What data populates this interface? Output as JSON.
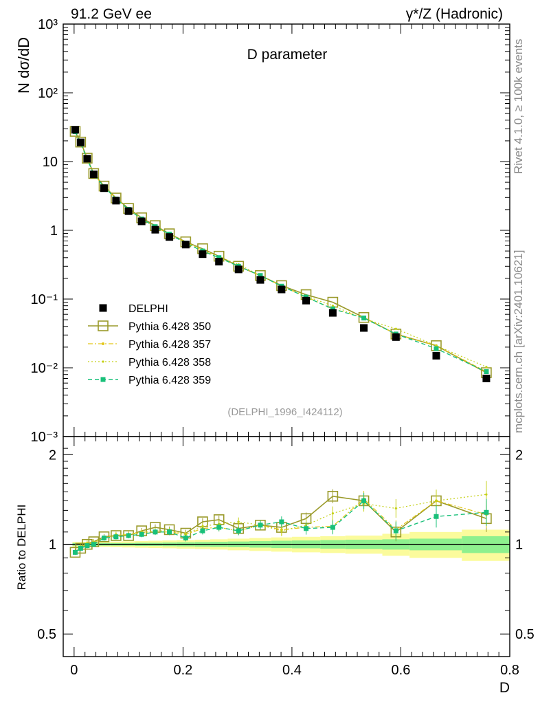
{
  "header": {
    "left": "91.2 GeV ee",
    "right": "γ*/Z (Hadronic)"
  },
  "side_labels": {
    "top": "Rivet 4.1.0, ≥ 100k events",
    "bottom": "mcplots.cern.ch [arXiv:2401.10621]"
  },
  "colors": {
    "data": "#000000",
    "p350": "#9a9a2a",
    "p357": "#e3c619",
    "p358": "#c5d118",
    "p359": "#19c07a",
    "band_inner": "#8ef08e",
    "band_outer": "#fbfb9c"
  },
  "chart_data": [
    {
      "type": "line",
      "title": "D parameter",
      "ylabel": "N  dσ/dD",
      "yscale": "log",
      "ylim": [
        0.001,
        1000
      ],
      "xlim": [
        -0.02,
        0.8
      ],
      "watermark": "(DELPHI_1996_I424112)",
      "y_tick_labels": [
        "10³",
        "10²",
        "10",
        "1",
        "10⁻¹",
        "10⁻²",
        "10⁻³"
      ],
      "y_tick_values": [
        1000,
        100,
        10,
        1,
        0.1,
        0.01,
        0.001
      ],
      "legend": {
        "placement": "lower-left",
        "entries": [
          "DELPHI",
          "Pythia 6.428 350",
          "Pythia 6.428 357",
          "Pythia 6.428 358",
          "Pythia 6.428 359"
        ]
      },
      "x": [
        0.002,
        0.012,
        0.024,
        0.036,
        0.055,
        0.077,
        0.1,
        0.124,
        0.149,
        0.175,
        0.205,
        0.236,
        0.266,
        0.302,
        0.342,
        0.381,
        0.426,
        0.475,
        0.532,
        0.591,
        0.665,
        0.757
      ],
      "data": [
        29,
        19,
        11,
        6.5,
        4.1,
        2.7,
        1.9,
        1.35,
        1.02,
        0.8,
        0.62,
        0.45,
        0.35,
        0.27,
        0.19,
        0.138,
        0.095,
        0.063,
        0.038,
        0.028,
        0.015,
        0.007
      ],
      "series": [
        {
          "name": "Pythia 6.428 350",
          "values": [
            27.5,
            19.2,
            11.2,
            6.7,
            4.4,
            2.95,
            2.08,
            1.52,
            1.17,
            0.89,
            0.68,
            0.54,
            0.42,
            0.3,
            0.22,
            0.157,
            0.116,
            0.09,
            0.054,
            0.031,
            0.021,
            0.0085
          ]
        },
        {
          "name": "Pythia 6.428 357",
          "values": [
            27.3,
            18.7,
            11.0,
            6.6,
            4.3,
            2.9,
            2.05,
            1.48,
            1.12,
            0.88,
            0.67,
            0.51,
            0.4,
            0.3,
            0.22,
            0.155,
            0.108,
            0.072,
            0.054,
            0.031,
            0.021,
            0.0088
          ]
        },
        {
          "name": "Pythia 6.428 358",
          "values": [
            27.4,
            18.6,
            11.1,
            6.6,
            4.3,
            2.9,
            2.05,
            1.47,
            1.13,
            0.89,
            0.67,
            0.52,
            0.41,
            0.32,
            0.22,
            0.153,
            0.11,
            0.08,
            0.052,
            0.037,
            0.021,
            0.0103
          ]
        },
        {
          "name": "Pythia 6.428 359",
          "values": [
            27.2,
            18.5,
            10.9,
            6.5,
            4.3,
            2.85,
            2.02,
            1.46,
            1.13,
            0.88,
            0.65,
            0.5,
            0.4,
            0.3,
            0.22,
            0.154,
            0.107,
            0.072,
            0.053,
            0.031,
            0.019,
            0.0088
          ]
        }
      ]
    },
    {
      "type": "line",
      "ylabel": "Ratio to DELPHI",
      "yscale": "log",
      "ylim": [
        0.42,
        2.3
      ],
      "xlim": [
        -0.02,
        0.8
      ],
      "xlabel": "D",
      "x_tick_labels": [
        "0",
        "0.2",
        "0.4",
        "0.6",
        "0.8"
      ],
      "x_tick_values": [
        0,
        0.2,
        0.4,
        0.6,
        0.8
      ],
      "y_tick_labels": [
        "2",
        "1",
        "0.5"
      ],
      "y_tick_values": [
        2,
        1,
        0.5
      ],
      "reference": 1,
      "band": {
        "x_edges": [
          -0.003,
          0.007,
          0.017,
          0.03,
          0.042,
          0.066,
          0.088,
          0.112,
          0.136,
          0.162,
          0.188,
          0.222,
          0.25,
          0.282,
          0.322,
          0.362,
          0.4,
          0.452,
          0.498,
          0.566,
          0.616,
          0.712,
          0.8
        ],
        "inner": [
          0.01,
          0.01,
          0.01,
          0.01,
          0.01,
          0.01,
          0.01,
          0.012,
          0.012,
          0.014,
          0.016,
          0.018,
          0.02,
          0.022,
          0.025,
          0.028,
          0.03,
          0.033,
          0.036,
          0.04,
          0.045,
          0.065
        ],
        "outer": [
          0.02,
          0.02,
          0.02,
          0.02,
          0.02,
          0.022,
          0.024,
          0.026,
          0.028,
          0.03,
          0.033,
          0.036,
          0.04,
          0.045,
          0.05,
          0.055,
          0.06,
          0.065,
          0.07,
          0.085,
          0.1,
          0.12
        ]
      },
      "series": [
        {
          "name": "Pythia 6.428 350",
          "values": [
            0.94,
            0.97,
            1.0,
            1.02,
            1.06,
            1.07,
            1.07,
            1.11,
            1.14,
            1.12,
            1.09,
            1.19,
            1.21,
            1.13,
            1.16,
            1.14,
            1.22,
            1.45,
            1.4,
            1.1,
            1.4,
            1.22
          ]
        },
        {
          "name": "Pythia 6.428 357",
          "values": [
            0.94,
            0.98,
            1.0,
            1.01,
            1.05,
            1.07,
            1.08,
            1.1,
            1.1,
            1.1,
            1.08,
            1.13,
            1.14,
            1.11,
            1.16,
            1.12,
            1.14,
            1.15,
            1.42,
            1.12,
            1.4,
            1.26
          ]
        },
        {
          "name": "Pythia 6.428 358",
          "values": [
            0.95,
            0.98,
            1.01,
            1.02,
            1.05,
            1.08,
            1.08,
            1.09,
            1.11,
            1.11,
            1.08,
            1.15,
            1.17,
            1.19,
            1.16,
            1.11,
            1.16,
            1.27,
            1.37,
            1.32,
            1.4,
            1.47
          ]
        },
        {
          "name": "Pythia 6.428 359",
          "values": [
            0.94,
            0.97,
            0.99,
            1.0,
            1.05,
            1.06,
            1.07,
            1.08,
            1.1,
            1.1,
            1.05,
            1.11,
            1.14,
            1.11,
            1.16,
            1.19,
            1.13,
            1.14,
            1.4,
            1.11,
            1.24,
            1.28
          ]
        }
      ]
    }
  ]
}
